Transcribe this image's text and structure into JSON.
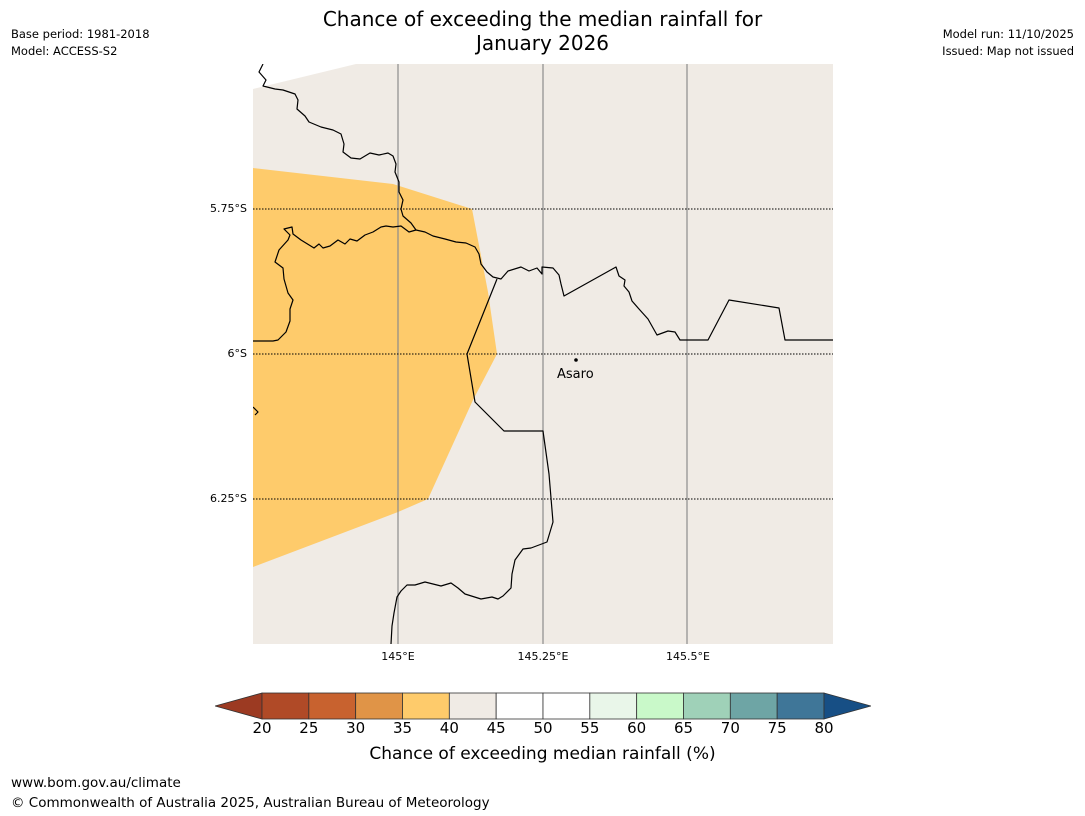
{
  "title": {
    "line1": "Chance of exceeding the median rainfall for",
    "line2": "January 2026"
  },
  "meta_left": {
    "base_period": "Base period: 1981-2018",
    "model": "Model: ACCESS-S2"
  },
  "meta_right": {
    "model_run": "Model run: 11/10/2025",
    "issued": "Issued: Map not issued"
  },
  "map": {
    "latitude_labels": [
      "5.75°S",
      "6°S",
      "6.25°S"
    ],
    "longitude_labels": [
      "145°E",
      "145.25°E",
      "145.5°E"
    ],
    "place_label": "Asaro",
    "colors": {
      "land_neutral": "#f0ebe5",
      "below_median_35_40": "#fecb6b",
      "border": "#000000",
      "gridline_lon": "#8c8c8c"
    }
  },
  "colorbar": {
    "ticks": [
      "20",
      "25",
      "30",
      "35",
      "40",
      "45",
      "50",
      "55",
      "60",
      "65",
      "70",
      "75",
      "80"
    ],
    "colors": [
      "#9c3a22",
      "#b04a27",
      "#c8622f",
      "#e09447",
      "#fecb6b",
      "#f0ebe5",
      "#ffffff",
      "#ffffff",
      "#e9f6e9",
      "#c9f9c9",
      "#9fd1b8",
      "#6ea5a5",
      "#3f7698",
      "#174f85"
    ],
    "label": "Chance of exceeding median rainfall (%)"
  },
  "footer": {
    "url": "www.bom.gov.au/climate",
    "copyright": "© Commonwealth of Australia 2025, Australian Bureau of Meteorology"
  }
}
